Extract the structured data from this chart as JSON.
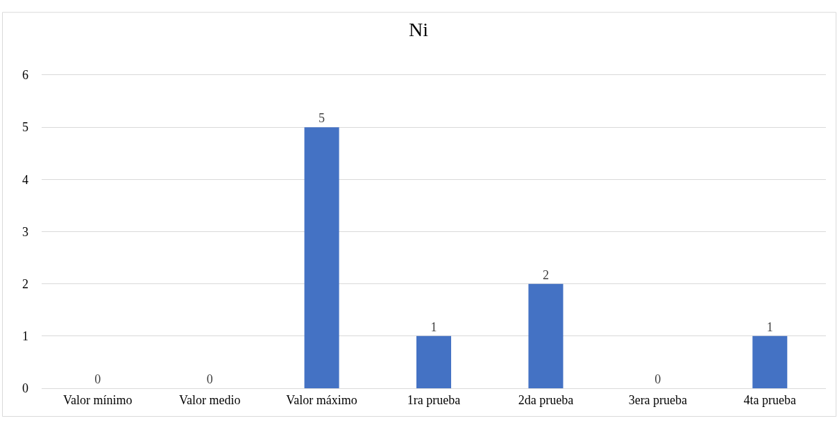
{
  "chart_data": {
    "type": "bar",
    "title": "Ni",
    "categories": [
      "Valor mínimo",
      "Valor medio",
      "Valor máximo",
      "1ra prueba",
      "2da prueba",
      "3era prueba",
      "4ta prueba"
    ],
    "values": [
      0,
      0,
      5,
      1,
      2,
      0,
      1
    ],
    "color": "#4472c4",
    "ylim": [
      0,
      6
    ],
    "yticks": [
      0,
      1,
      2,
      3,
      4,
      5,
      6
    ],
    "grid": "y",
    "data_labels": true
  }
}
